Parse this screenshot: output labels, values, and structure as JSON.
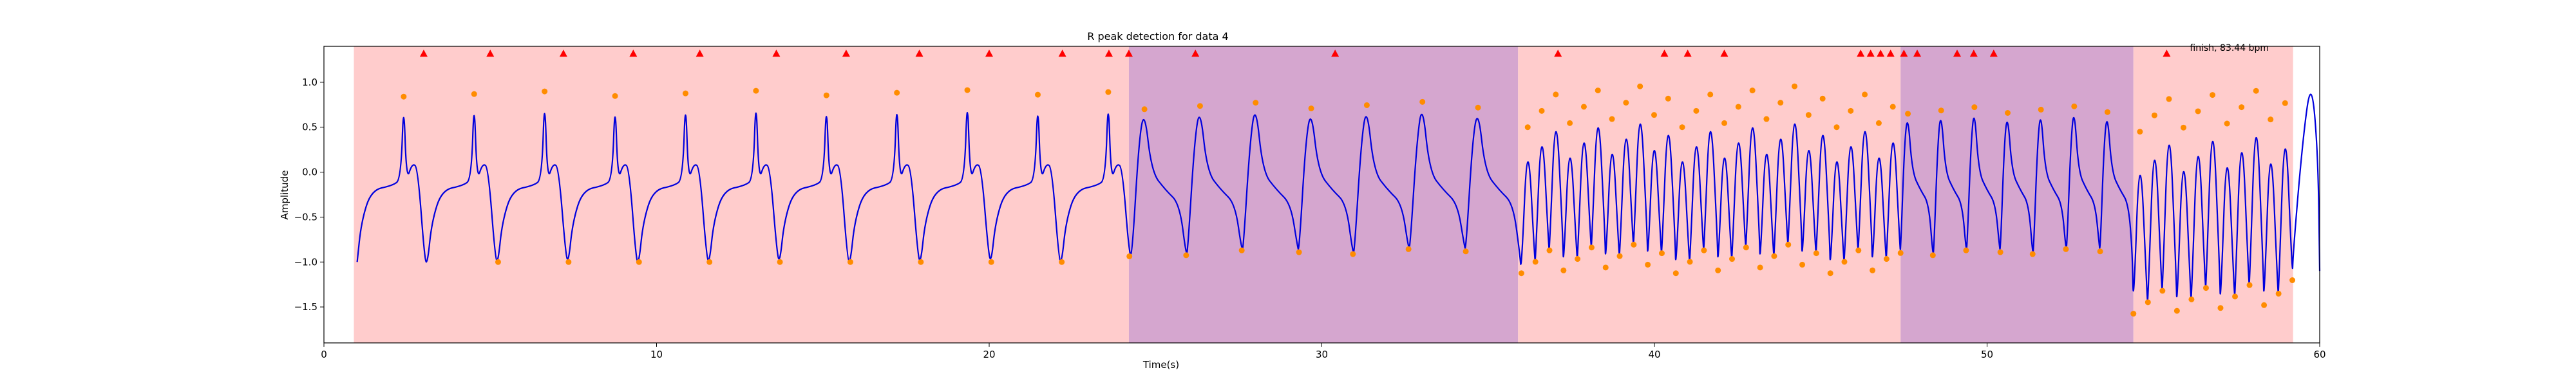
{
  "chart_data": {
    "type": "line",
    "title": "R peak detection for data 4",
    "xlabel": "Time(s)",
    "ylabel": "Amplitude",
    "xlim": [
      0,
      60
    ],
    "ylim": [
      -1.9,
      1.4
    ],
    "xticks": [
      0,
      10,
      20,
      30,
      40,
      50,
      60
    ],
    "yticks": [
      -1.5,
      -1.0,
      -0.5,
      0.0,
      0.5,
      1.0
    ],
    "grid": false,
    "colors": {
      "signal": "#0000dd",
      "peaks": "#ff8c00",
      "markers": "#ff0000",
      "region_red": "#ffcccc",
      "region_purple": "#d5a6cf"
    },
    "regions": [
      {
        "x0": 0.9,
        "x1": 24.2,
        "color": "red"
      },
      {
        "x0": 24.2,
        "x1": 35.9,
        "color": "purple"
      },
      {
        "x0": 35.9,
        "x1": 47.4,
        "color": "red"
      },
      {
        "x0": 47.4,
        "x1": 54.4,
        "color": "purple"
      },
      {
        "x0": 54.4,
        "x1": 59.2,
        "color": "red"
      }
    ],
    "beat_segments": [
      {
        "x0": 1.0,
        "x1": 24.3,
        "shape": "ecg",
        "peak": 0.88,
        "trough": -1.05
      },
      {
        "x0": 24.3,
        "x1": 36.0,
        "shape": "wide",
        "peak": 0.75,
        "trough": -0.85
      },
      {
        "x0": 36.0,
        "x1": 47.4,
        "shape": "fast",
        "peak": 0.75,
        "trough": -0.95
      },
      {
        "x0": 47.4,
        "x1": 54.4,
        "shape": "wide",
        "peak": 0.7,
        "trough": -0.85
      },
      {
        "x0": 54.4,
        "x1": 59.2,
        "shape": "fast",
        "peak": 0.7,
        "trough": -1.4
      },
      {
        "x0": 59.2,
        "x1": 60.0,
        "shape": "tail",
        "peak": 1.05,
        "trough": -1.1
      }
    ],
    "r_peak_markers_x": [
      3.0,
      5.0,
      7.2,
      9.3,
      11.3,
      13.6,
      15.7,
      17.9,
      20.0,
      22.2,
      23.6,
      24.2,
      26.2,
      30.4,
      37.1,
      40.3,
      41.0,
      42.1,
      46.2,
      46.5,
      46.8,
      47.1,
      47.5,
      47.9,
      49.1,
      49.6,
      50.2,
      55.4
    ],
    "r_peak_markers_y": 1.32,
    "annotation": {
      "text": "finish, 83.44 bpm",
      "x": 56.0,
      "y": 1.35
    }
  }
}
